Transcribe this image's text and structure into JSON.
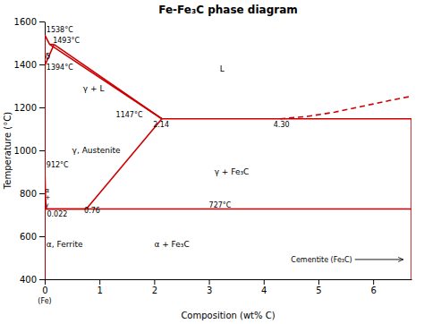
{
  "chart_data": {
    "type": "line",
    "title": "Fe-Fe₃C phase diagram",
    "x_label": "Composition (wt% C)",
    "y_label": "Temperature (°C)",
    "xlim": [
      0,
      6.7
    ],
    "ylim": [
      400,
      1600
    ],
    "xticks": [
      0,
      1,
      2,
      3,
      4,
      5,
      6
    ],
    "yticks": [
      400,
      600,
      800,
      1000,
      1200,
      1400,
      1600
    ],
    "grid": false,
    "color": "#cc0000",
    "series": [
      {
        "x": [
          0,
          0
        ],
        "values": [
          1538,
          1394
        ],
        "line_style": "solid"
      },
      {
        "x": [
          0,
          0.09
        ],
        "values": [
          1538,
          1493
        ],
        "line_style": "solid"
      },
      {
        "x": [
          0.09,
          0.17
        ],
        "values": [
          1493,
          1493
        ],
        "line_style": "solid"
      },
      {
        "x": [
          0,
          0.17
        ],
        "values": [
          1394,
          1493
        ],
        "line_style": "solid"
      },
      {
        "x": [
          0.17,
          2.14
        ],
        "values": [
          1493,
          1147
        ],
        "line_style": "solid"
      },
      {
        "x": [
          0.09,
          2.14
        ],
        "values": [
          1493,
          1147
        ],
        "line_style": "solid"
      },
      {
        "x": [
          0,
          0
        ],
        "values": [
          912,
          1394
        ],
        "line_style": "solid"
      },
      {
        "x": [
          0,
          0.022
        ],
        "values": [
          912,
          727
        ],
        "line_style": "solid"
      },
      {
        "x": [
          0.022,
          0.76
        ],
        "values": [
          727,
          727
        ],
        "line_style": "solid"
      },
      {
        "x": [
          0.76,
          2.14
        ],
        "values": [
          727,
          1147
        ],
        "line_style": "solid"
      },
      {
        "x": [
          2.14,
          4.3
        ],
        "values": [
          1147,
          1147
        ],
        "line_style": "solid"
      },
      {
        "x": [
          0,
          6.7
        ],
        "values": [
          727,
          727
        ],
        "line_style": "solid"
      },
      {
        "x": [
          0,
          0
        ],
        "values": [
          400,
          912
        ],
        "line_style": "solid"
      },
      {
        "x": [
          6.7,
          6.7
        ],
        "values": [
          400,
          1147
        ],
        "line_style": "solid"
      },
      {
        "x": [
          4.3,
          6.7
        ],
        "values": [
          1147,
          1147
        ],
        "line_style": "solid"
      },
      {
        "x": [
          4.3,
          4.8,
          5.3,
          5.8,
          6.3,
          6.7
        ],
        "values": [
          1147,
          1158,
          1178,
          1205,
          1232,
          1252
        ],
        "line_style": "dashed"
      }
    ],
    "annotations": [
      {
        "text": "(Fe)",
        "x": 0,
        "y": 370
      },
      {
        "text": "1538°C",
        "x": 0.03,
        "y": 1548
      },
      {
        "text": "1493°C",
        "x": 0.15,
        "y": 1502
      },
      {
        "text": "1394°C",
        "x": 0.03,
        "y": 1375
      },
      {
        "text": "912°C",
        "x": 0.03,
        "y": 922
      },
      {
        "text": "1147°C",
        "x": 1.3,
        "y": 1155
      },
      {
        "text": "727°C",
        "x": 3.0,
        "y": 733
      },
      {
        "text": "0.76",
        "x": 0.72,
        "y": 708
      },
      {
        "text": "0.022",
        "x": 0.04,
        "y": 690
      },
      {
        "text": "2.14",
        "x": 1.98,
        "y": 1108
      },
      {
        "text": "4.30",
        "x": 4.18,
        "y": 1108
      }
    ],
    "region_labels": [
      {
        "text": "γ, Austenite",
        "x": 0.5,
        "y": 1000
      },
      {
        "text": "α, Ferrite",
        "x": 0.03,
        "y": 565
      },
      {
        "text": "α + Fe₃C",
        "x": 2.0,
        "y": 565
      },
      {
        "text": "γ + Fe₃C",
        "x": 3.1,
        "y": 900
      },
      {
        "text": "γ + L",
        "x": 0.7,
        "y": 1290
      },
      {
        "text": "L",
        "x": 3.2,
        "y": 1380
      },
      {
        "text": "δ",
        "x": 0.01,
        "y": 1440
      }
    ],
    "stacked_labels": [
      {
        "text": "α",
        "x": 0.01,
        "y": 798
      },
      {
        "text": "+",
        "x": 0.01,
        "y": 781
      },
      {
        "text": "γ",
        "x": 0.01,
        "y": 764
      }
    ],
    "arrow_label": {
      "text": "Cementite (Fe₃C)",
      "x": 4.5,
      "y": 492,
      "arrow_to": [
        6.55,
        492
      ]
    }
  }
}
